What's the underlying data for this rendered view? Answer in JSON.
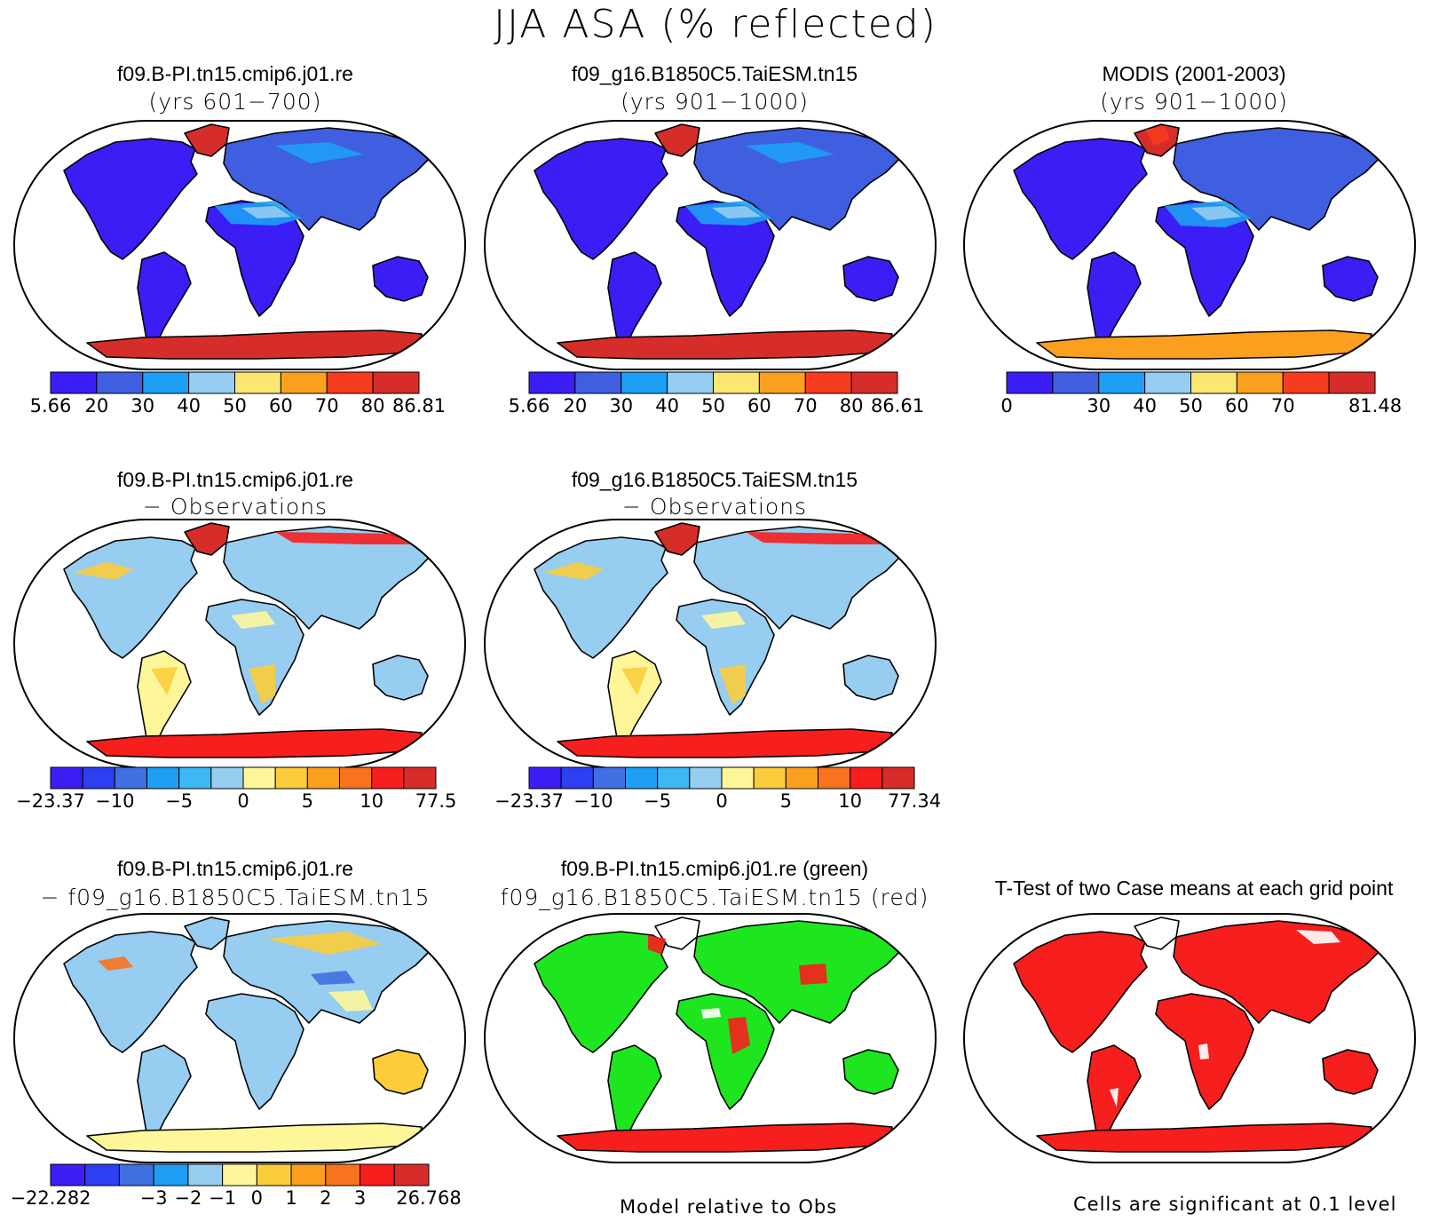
{
  "figure_title": "JJA ASA (% reflected)",
  "panels": [
    {
      "id": "p1",
      "title1": "f09.B-PI.tn15.cmip6.j01.re",
      "title2": "(yrs 601−700)",
      "kind": "mean"
    },
    {
      "id": "p2",
      "title1": "f09_g16.B1850C5.TaiESM.tn15",
      "title2": "(yrs 901−1000)",
      "kind": "mean"
    },
    {
      "id": "p3",
      "title1": "MODIS (2001-2003)",
      "title2": "(yrs 901−1000)",
      "kind": "obs"
    },
    {
      "id": "p4",
      "title1": "f09.B-PI.tn15.cmip6.j01.re",
      "title2": "− Observations",
      "kind": "diff"
    },
    {
      "id": "p5",
      "title1": "f09_g16.B1850C5.TaiESM.tn15",
      "title2": "− Observations",
      "kind": "diff"
    },
    {
      "id": "p6",
      "title1": "f09.B-PI.tn15.cmip6.j01.re",
      "title2": "− f09_g16.B1850C5.TaiESM.tn15",
      "kind": "diff2"
    },
    {
      "id": "p7",
      "title1": "f09.B-PI.tn15.cmip6.j01.re (green)",
      "title2": "f09_g16.B1850C5.TaiESM.tn15 (red)",
      "kind": "rel"
    },
    {
      "id": "p8",
      "title1": "T-Test of two Case means at each grid point",
      "title2": "",
      "kind": "ttest"
    }
  ],
  "colorbars": [
    {
      "id": "cb1",
      "labels": [
        "5.66",
        "20",
        "30",
        "40",
        "50",
        "60",
        "70",
        "80",
        "86.81"
      ],
      "colors": [
        "#3b1ef5",
        "#3f5fe0",
        "#1e9ff5",
        "#96cdf0",
        "#fbe672",
        "#fba01e",
        "#f73b1e",
        "#d72d2a"
      ]
    },
    {
      "id": "cb2",
      "labels": [
        "5.66",
        "20",
        "30",
        "40",
        "50",
        "60",
        "70",
        "80",
        "86.61"
      ],
      "colors": [
        "#3b1ef5",
        "#3f5fe0",
        "#1e9ff5",
        "#96cdf0",
        "#fbe672",
        "#fba01e",
        "#f73b1e",
        "#d72d2a"
      ]
    },
    {
      "id": "cb3",
      "labels": [
        "0",
        "30",
        "40",
        "50",
        "60",
        "70",
        "81.48"
      ],
      "colors": [
        "#3b1ef5",
        "#3f5fe0",
        "#1e9ff5",
        "#96cdf0",
        "#fbe672",
        "#fba01e",
        "#f73b1e",
        "#d72d2a"
      ]
    },
    {
      "id": "cb4",
      "labels": [
        "−23.37",
        "−10",
        "−5",
        "0",
        "5",
        "10",
        "77.5"
      ],
      "colors": [
        "#3b1ef5",
        "#2d3ff0",
        "#3f6fe0",
        "#1e9ff5",
        "#3cb8f5",
        "#96cdf0",
        "#fdf79a",
        "#fbcd3c",
        "#fba01e",
        "#f7731e",
        "#f71e1e",
        "#d72d2a"
      ]
    },
    {
      "id": "cb5",
      "labels": [
        "−23.37",
        "−10",
        "−5",
        "0",
        "5",
        "10",
        "77.34"
      ],
      "colors": [
        "#3b1ef5",
        "#2d3ff0",
        "#3f6fe0",
        "#1e9ff5",
        "#3cb8f5",
        "#96cdf0",
        "#fdf79a",
        "#fbcd3c",
        "#fba01e",
        "#f7731e",
        "#f71e1e",
        "#d72d2a"
      ]
    },
    {
      "id": "cb6",
      "labels": [
        "−22.282",
        "−3",
        "−2",
        "−1",
        "0",
        "1",
        "2",
        "3",
        "26.768"
      ],
      "colors": [
        "#3b1ef5",
        "#2d3ff0",
        "#3f6fe0",
        "#1e9ff5",
        "#96cdf0",
        "#fdf79a",
        "#fbcd3c",
        "#fba01e",
        "#f7731e",
        "#f71e1e",
        "#d72d2a"
      ]
    }
  ],
  "notes": {
    "rel": "Model relative to Obs",
    "ttest": "Cells are significant at 0.1 level"
  }
}
